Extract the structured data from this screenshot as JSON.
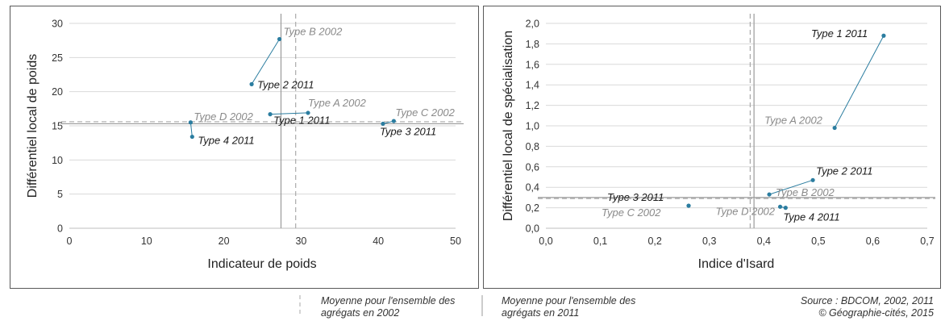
{
  "chart_data": [
    {
      "type": "scatter",
      "xlabel": "Indicateur de poids",
      "ylabel": "Différentiel local de poids",
      "xlim": [
        0,
        50
      ],
      "ylim": [
        0,
        30
      ],
      "xticks": [
        "0",
        "10",
        "20",
        "30",
        "40",
        "50"
      ],
      "yticks": [
        "0",
        "5",
        "10",
        "15",
        "20",
        "25",
        "30"
      ],
      "grid": true,
      "mean_2002": {
        "x": 29.3,
        "y": 15.6
      },
      "mean_2011": {
        "x": 27.4,
        "y": 15.3
      },
      "pairs": [
        {
          "p2002": {
            "label": "Type B 2002",
            "x": 27.2,
            "y": 27.7
          },
          "p2011": {
            "label": "Type 2 2011",
            "x": 23.6,
            "y": 21.1
          }
        },
        {
          "p2002": {
            "label": "Type A 2002",
            "x": 30.9,
            "y": 16.9
          },
          "p2011": {
            "label": "Type 1 2011",
            "x": 26.0,
            "y": 16.7
          }
        },
        {
          "p2002": {
            "label": "Type C 2002",
            "x": 42.0,
            "y": 15.7
          },
          "p2011": {
            "label": "Type 3 2011",
            "x": 40.6,
            "y": 15.3
          }
        },
        {
          "p2002": {
            "label": "Type D 2002",
            "x": 15.7,
            "y": 15.5
          },
          "p2011": {
            "label": "Type 4 2011",
            "x": 15.9,
            "y": 13.4
          }
        }
      ]
    },
    {
      "type": "scatter",
      "xlabel": "Indice d'Isard",
      "ylabel": "Différentiel local de spécialisation",
      "xlim": [
        0,
        0.7
      ],
      "ylim": [
        0,
        2.0
      ],
      "xticks": [
        "0,0",
        "0,1",
        "0,2",
        "0,3",
        "0,4",
        "0,5",
        "0,6",
        "0,7"
      ],
      "yticks": [
        "0,0",
        "0,2",
        "0,4",
        "0,6",
        "0,8",
        "1,0",
        "1,2",
        "1,4",
        "1,6",
        "1,8",
        "2,0"
      ],
      "grid": true,
      "mean_2002": {
        "x": 0.375,
        "y": 0.29
      },
      "mean_2011": {
        "x": 0.382,
        "y": 0.3
      },
      "pairs": [
        {
          "p2002": {
            "label": "Type A 2002",
            "x": 0.53,
            "y": 0.98
          },
          "p2011": {
            "label": "Type 1 2011",
            "x": 0.62,
            "y": 1.88
          }
        },
        {
          "p2002": {
            "label": "Type B 2002",
            "x": 0.41,
            "y": 0.33
          },
          "p2011": {
            "label": "Type 2 2011",
            "x": 0.49,
            "y": 0.47
          }
        },
        {
          "p2002": {
            "label": "Type C 2002",
            "x": 0.262,
            "y": 0.22
          },
          "p2011": {
            "label": "Type 3 2011",
            "x": 0.262,
            "y": 0.22
          }
        },
        {
          "p2002": {
            "label": "Type D 2002",
            "x": 0.43,
            "y": 0.21
          },
          "p2011": {
            "label": "Type 4 2011",
            "x": 0.44,
            "y": 0.2
          }
        }
      ]
    }
  ],
  "legend": {
    "mean_2002": "Moyenne pour l'ensemble des agrégats en 2002",
    "mean_2011": "Moyenne pour l'ensemble des agrégats en 2011"
  },
  "source": {
    "line1": "Source : BDCOM, 2002, 2011",
    "line2": "© Géographie-cités, 2015"
  },
  "colors": {
    "point": "#2b7da0",
    "connector": "#2b7da0",
    "mean_line": "#9a9a9a",
    "grid": "#d9d9d9",
    "frame": "#595959"
  }
}
